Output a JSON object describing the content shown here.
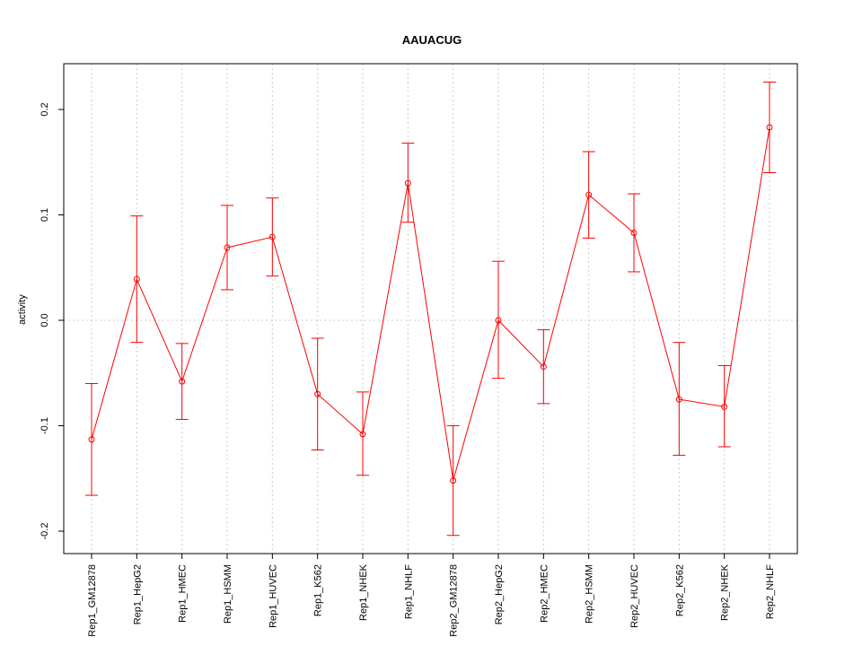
{
  "chart_data": {
    "type": "line",
    "title": "AAUACUG",
    "xlabel": "",
    "ylabel": "activity",
    "ylim": [
      -0.22,
      0.24
    ],
    "yticks": [
      -0.2,
      -0.1,
      0.0,
      0.1,
      0.2
    ],
    "ytick_labels": [
      "-0.2",
      "-0.1",
      "0.0",
      "0.1",
      "0.2"
    ],
    "grid": true,
    "color": "#ff0000",
    "categories": [
      "Rep1_GM12878",
      "Rep1_HepG2",
      "Rep1_HMEC",
      "Rep1_HSMM",
      "Rep1_HUVEC",
      "Rep1_K562",
      "Rep1_NHEK",
      "Rep1_NHLF",
      "Rep2_GM12878",
      "Rep2_HepG2",
      "Rep2_HMEC",
      "Rep2_HSMM",
      "Rep2_HUVEC",
      "Rep2_K562",
      "Rep2_NHEK",
      "Rep2_NHLF"
    ],
    "values": [
      -0.113,
      0.039,
      -0.058,
      0.069,
      0.079,
      -0.07,
      -0.108,
      0.13,
      -0.152,
      0.0,
      -0.044,
      0.119,
      0.083,
      -0.075,
      -0.082,
      0.183
    ],
    "error_low": [
      -0.166,
      -0.021,
      -0.094,
      0.029,
      0.042,
      -0.123,
      -0.147,
      0.093,
      -0.204,
      -0.055,
      -0.079,
      0.078,
      0.046,
      -0.128,
      -0.12,
      0.14
    ],
    "error_high": [
      -0.06,
      0.099,
      -0.022,
      0.109,
      0.116,
      -0.017,
      -0.068,
      0.168,
      -0.1,
      0.056,
      -0.009,
      0.16,
      0.12,
      -0.021,
      -0.043,
      0.226
    ]
  }
}
